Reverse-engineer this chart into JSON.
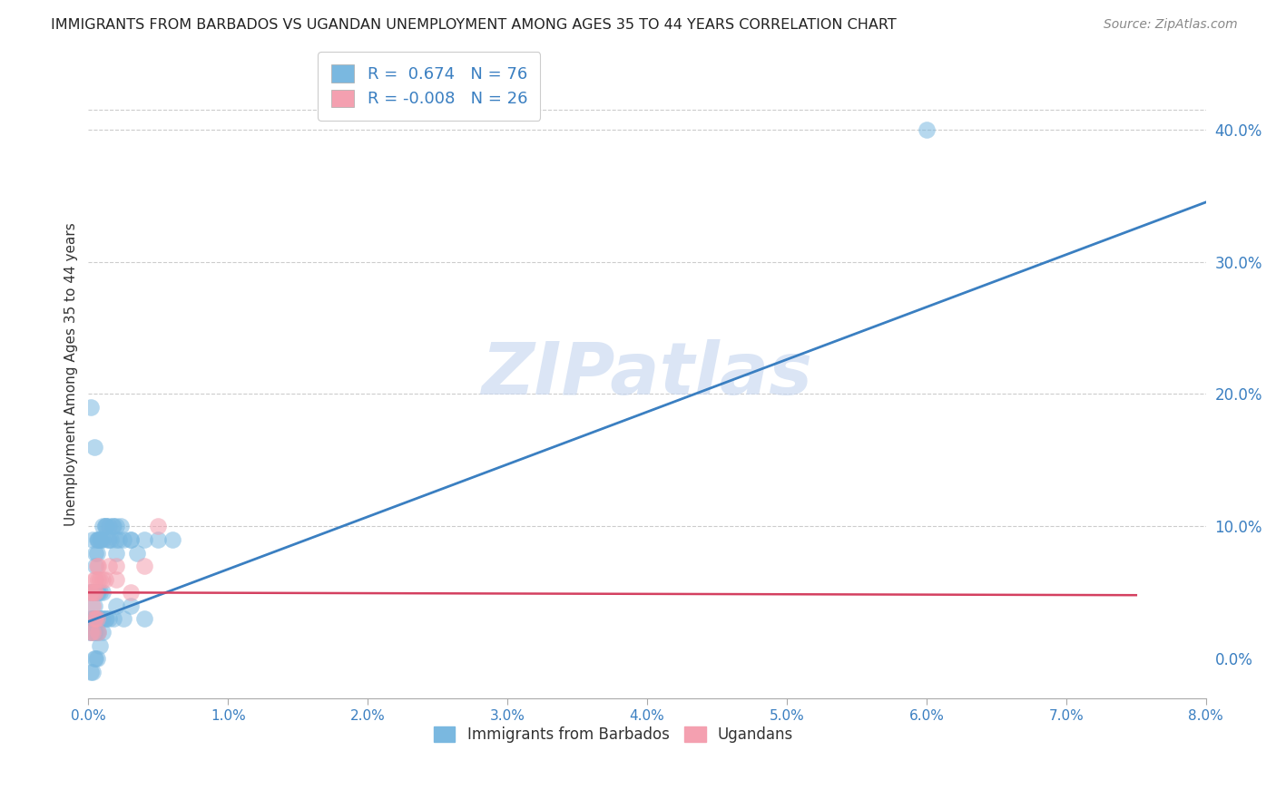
{
  "title": "IMMIGRANTS FROM BARBADOS VS UGANDAN UNEMPLOYMENT AMONG AGES 35 TO 44 YEARS CORRELATION CHART",
  "source": "Source: ZipAtlas.com",
  "ylabel": "Unemployment Among Ages 35 to 44 years",
  "legend_label1": "Immigrants from Barbados",
  "legend_label2": "Ugandans",
  "R1_str": "0.674",
  "N1_str": "76",
  "R2_str": "-0.008",
  "N2_str": "26",
  "color1": "#7ab8e0",
  "color2": "#f4a0b0",
  "line_color1": "#3a7fc1",
  "line_color2": "#d44060",
  "xlim": [
    0.0,
    0.08
  ],
  "ylim": [
    -0.03,
    0.46
  ],
  "watermark": "ZIPatlas",
  "watermark_color": "#c8d8f0",
  "bg_color": "#ffffff",
  "grid_color": "#cccccc",
  "title_color": "#222222",
  "axis_label_color": "#333333",
  "tick_color": "#3a7fc1",
  "blue_line_x0": 0.0,
  "blue_line_y0": 0.028,
  "blue_line_x1": 0.08,
  "blue_line_y1": 0.345,
  "pink_line_x0": 0.0,
  "pink_line_y0": 0.05,
  "pink_line_x1": 0.075,
  "pink_line_y1": 0.048,
  "blue_x": [
    0.0001,
    0.0002,
    0.0002,
    0.0003,
    0.0003,
    0.0003,
    0.0004,
    0.0004,
    0.0004,
    0.0005,
    0.0005,
    0.0005,
    0.0006,
    0.0006,
    0.0006,
    0.0007,
    0.0007,
    0.0007,
    0.0008,
    0.0008,
    0.0009,
    0.001,
    0.001,
    0.001,
    0.0012,
    0.0012,
    0.0013,
    0.0014,
    0.0015,
    0.0015,
    0.0016,
    0.0017,
    0.0018,
    0.002,
    0.002,
    0.002,
    0.0022,
    0.0023,
    0.0025,
    0.003,
    0.003,
    0.0035,
    0.004,
    0.005,
    0.006,
    0.06,
    0.0001,
    0.0002,
    0.0002,
    0.0003,
    0.0003,
    0.0004,
    0.0004,
    0.0005,
    0.0005,
    0.0006,
    0.0007,
    0.0007,
    0.0008,
    0.0009,
    0.001,
    0.001,
    0.0012,
    0.0013,
    0.0015,
    0.0018,
    0.002,
    0.0025,
    0.003,
    0.004,
    0.0002,
    0.0003,
    0.0004,
    0.0005,
    0.0006,
    0.0008
  ],
  "blue_y": [
    0.05,
    0.05,
    0.19,
    0.05,
    0.05,
    0.09,
    0.04,
    0.05,
    0.16,
    0.05,
    0.07,
    0.08,
    0.05,
    0.08,
    0.09,
    0.05,
    0.09,
    0.09,
    0.05,
    0.09,
    0.09,
    0.05,
    0.09,
    0.1,
    0.1,
    0.1,
    0.1,
    0.09,
    0.09,
    0.1,
    0.09,
    0.1,
    0.1,
    0.08,
    0.09,
    0.1,
    0.09,
    0.1,
    0.09,
    0.09,
    0.09,
    0.08,
    0.09,
    0.09,
    0.09,
    0.4,
    0.02,
    0.02,
    0.03,
    0.02,
    0.03,
    0.02,
    0.03,
    0.02,
    0.03,
    0.02,
    0.02,
    0.03,
    0.03,
    0.03,
    0.02,
    0.03,
    0.03,
    0.03,
    0.03,
    0.03,
    0.04,
    0.03,
    0.04,
    0.03,
    -0.01,
    -0.01,
    0.0,
    0.0,
    0.0,
    0.01
  ],
  "pink_x": [
    0.0001,
    0.0002,
    0.0003,
    0.0003,
    0.0004,
    0.0004,
    0.0005,
    0.0005,
    0.0006,
    0.0007,
    0.0007,
    0.0008,
    0.001,
    0.0012,
    0.0015,
    0.002,
    0.002,
    0.003,
    0.004,
    0.005,
    0.0002,
    0.0003,
    0.0004,
    0.0005,
    0.0006,
    0.0007
  ],
  "pink_y": [
    0.05,
    0.05,
    0.04,
    0.05,
    0.05,
    0.06,
    0.05,
    0.06,
    0.07,
    0.06,
    0.07,
    0.06,
    0.06,
    0.06,
    0.07,
    0.07,
    0.06,
    0.05,
    0.07,
    0.1,
    0.02,
    0.02,
    0.03,
    0.03,
    0.03,
    0.02
  ]
}
